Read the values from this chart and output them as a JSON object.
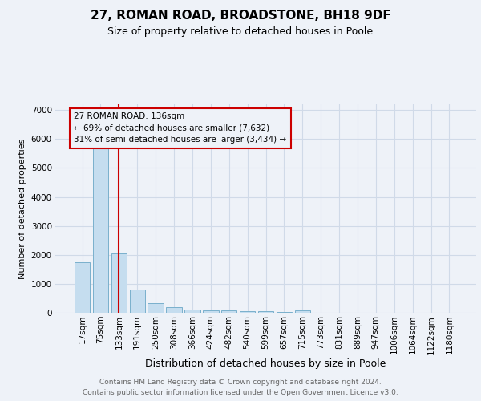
{
  "title1": "27, ROMAN ROAD, BROADSTONE, BH18 9DF",
  "title2": "Size of property relative to detached houses in Poole",
  "xlabel": "Distribution of detached houses by size in Poole",
  "ylabel": "Number of detached properties",
  "categories": [
    "17sqm",
    "75sqm",
    "133sqm",
    "191sqm",
    "250sqm",
    "308sqm",
    "366sqm",
    "424sqm",
    "482sqm",
    "540sqm",
    "599sqm",
    "657sqm",
    "715sqm",
    "773sqm",
    "831sqm",
    "889sqm",
    "947sqm",
    "1006sqm",
    "1064sqm",
    "1122sqm",
    "1180sqm"
  ],
  "values": [
    1750,
    5750,
    2050,
    800,
    330,
    200,
    120,
    90,
    75,
    50,
    50,
    30,
    80,
    0,
    0,
    0,
    0,
    0,
    0,
    0,
    0
  ],
  "bar_color": "#c5ddef",
  "bar_edge_color": "#7ab0cc",
  "grid_color": "#d0dae8",
  "vline_x_index": 2,
  "vline_color": "#cc0000",
  "annotation_line1": "27 ROMAN ROAD: 136sqm",
  "annotation_line2": "← 69% of detached houses are smaller (7,632)",
  "annotation_line3": "31% of semi-detached houses are larger (3,434) →",
  "annotation_box_color": "#cc0000",
  "ylim": [
    0,
    7200
  ],
  "yticks": [
    0,
    1000,
    2000,
    3000,
    4000,
    5000,
    6000,
    7000
  ],
  "footer1": "Contains HM Land Registry data © Crown copyright and database right 2024.",
  "footer2": "Contains public sector information licensed under the Open Government Licence v3.0.",
  "bg_color": "#eef2f8",
  "title1_fontsize": 11,
  "title2_fontsize": 9,
  "xlabel_fontsize": 9,
  "ylabel_fontsize": 8,
  "tick_fontsize": 7.5,
  "ann_fontsize": 7.5,
  "footer_fontsize": 6.5
}
